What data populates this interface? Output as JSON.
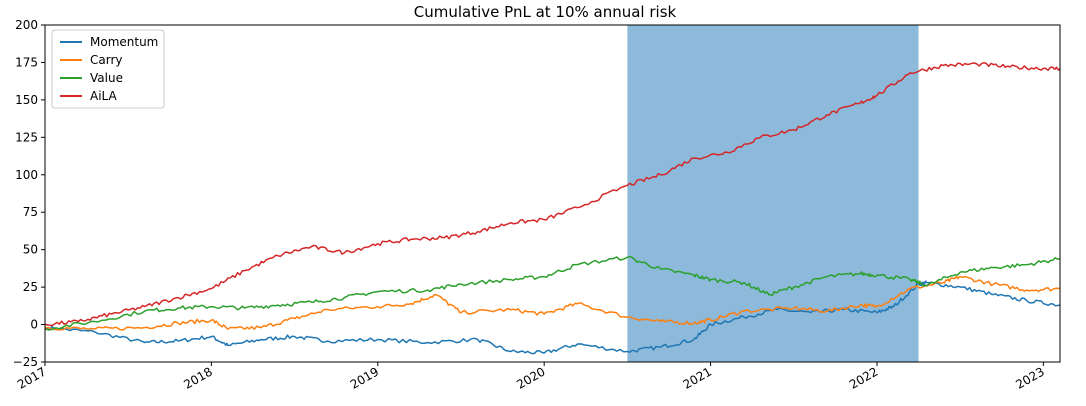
{
  "chart_data": {
    "type": "line",
    "title": "Cumulative PnL at 10% annual risk",
    "xlabel": "",
    "ylabel": "",
    "xlim": [
      2017.0,
      2023.1
    ],
    "ylim": [
      -25,
      200
    ],
    "yticks": [
      -25,
      0,
      25,
      50,
      75,
      100,
      125,
      150,
      175,
      200
    ],
    "xticks": [
      2017,
      2018,
      2019,
      2020,
      2021,
      2022,
      2023
    ],
    "xtick_labels": [
      "2017",
      "2018",
      "2019",
      "2020",
      "2021",
      "2022",
      "2023"
    ],
    "grid": false,
    "legend_position": "top-left",
    "highlight_span": {
      "x_start": 2020.5,
      "x_end": 2022.25,
      "color": "#8db9da"
    },
    "series": [
      {
        "name": "Momentum",
        "color": "#1f77b4",
        "x": [
          2017.0,
          2017.3,
          2017.6,
          2017.8,
          2018.0,
          2018.1,
          2018.3,
          2018.5,
          2018.7,
          2019.0,
          2019.3,
          2019.6,
          2019.8,
          2020.0,
          2020.2,
          2020.5,
          2020.7,
          2020.9,
          2021.0,
          2021.2,
          2021.4,
          2021.6,
          2021.8,
          2022.0,
          2022.1,
          2022.25,
          2022.3,
          2022.5,
          2022.7,
          2022.9,
          2023.1
        ],
        "values": [
          -2,
          -5,
          -12,
          -11,
          -8,
          -14,
          -10,
          -8,
          -11,
          -10,
          -12,
          -10,
          -18,
          -19,
          -13,
          -18,
          -15,
          -10,
          0,
          5,
          10,
          8,
          10,
          8,
          12,
          27,
          28,
          25,
          20,
          16,
          13
        ]
      },
      {
        "name": "Carry",
        "color": "#ff7f0e",
        "x": [
          2017.0,
          2017.3,
          2017.6,
          2017.8,
          2018.0,
          2018.1,
          2018.3,
          2018.5,
          2018.7,
          2019.0,
          2019.2,
          2019.35,
          2019.5,
          2019.8,
          2020.0,
          2020.2,
          2020.5,
          2020.7,
          2020.9,
          2021.0,
          2021.2,
          2021.5,
          2021.7,
          2021.9,
          2022.0,
          2022.2,
          2022.4,
          2022.5,
          2022.7,
          2022.9,
          2023.1
        ],
        "values": [
          -2,
          -3,
          -2,
          1,
          3,
          -3,
          -2,
          4,
          10,
          12,
          14,
          20,
          8,
          10,
          7,
          14,
          5,
          2,
          1,
          3,
          9,
          11,
          9,
          13,
          12,
          24,
          28,
          32,
          27,
          23,
          24
        ]
      },
      {
        "name": "Value",
        "color": "#2ca02c",
        "x": [
          2017.0,
          2017.3,
          2017.6,
          2017.8,
          2018.0,
          2018.2,
          2018.4,
          2018.6,
          2018.8,
          2019.0,
          2019.3,
          2019.5,
          2019.8,
          2020.0,
          2020.2,
          2020.5,
          2020.7,
          2020.9,
          2021.0,
          2021.2,
          2021.35,
          2021.5,
          2021.7,
          2021.9,
          2022.0,
          2022.2,
          2022.3,
          2022.5,
          2022.7,
          2022.9,
          2023.1
        ],
        "values": [
          -3,
          2,
          9,
          11,
          12,
          11,
          13,
          15,
          18,
          22,
          23,
          27,
          30,
          32,
          40,
          45,
          37,
          33,
          30,
          28,
          20,
          25,
          32,
          34,
          33,
          30,
          26,
          35,
          38,
          40,
          44
        ]
      },
      {
        "name": "AiLA",
        "color": "#d62728",
        "x": [
          2017.0,
          2017.2,
          2017.4,
          2017.6,
          2017.8,
          2018.0,
          2018.2,
          2018.4,
          2018.6,
          2018.8,
          2019.0,
          2019.2,
          2019.4,
          2019.6,
          2019.8,
          2020.0,
          2020.2,
          2020.5,
          2020.7,
          2020.9,
          2021.1,
          2021.3,
          2021.5,
          2021.7,
          2021.9,
          2022.0,
          2022.2,
          2022.4,
          2022.6,
          2022.8,
          2023.0,
          2023.1
        ],
        "values": [
          0,
          2,
          7,
          12,
          18,
          24,
          36,
          46,
          52,
          48,
          54,
          57,
          58,
          62,
          68,
          70,
          78,
          93,
          100,
          111,
          115,
          125,
          130,
          140,
          148,
          153,
          168,
          173,
          174,
          172,
          171,
          171
        ]
      }
    ]
  }
}
